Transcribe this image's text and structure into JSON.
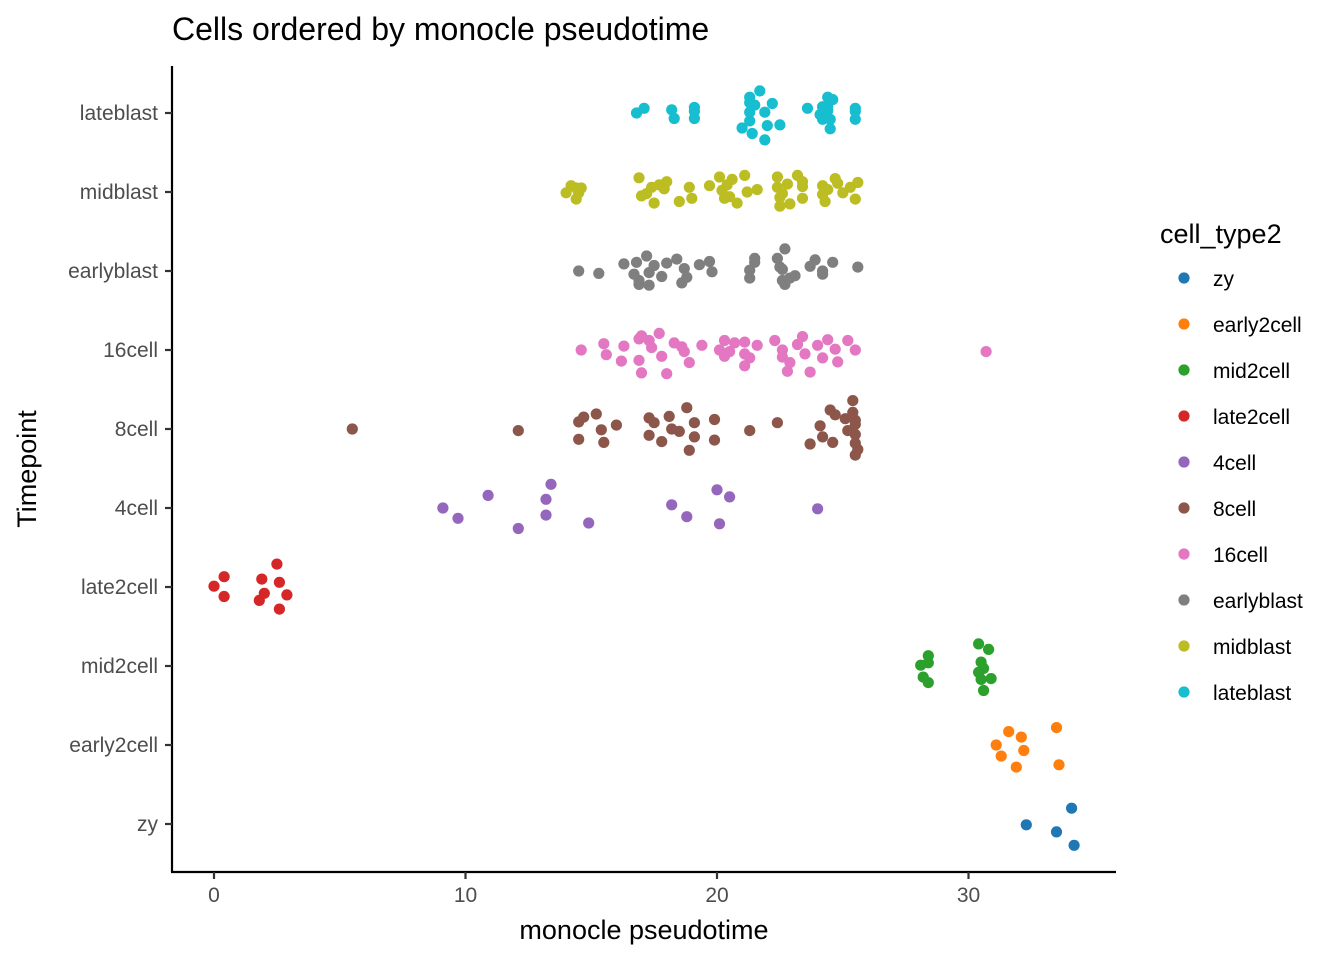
{
  "chart_data": {
    "type": "scatter",
    "title": "Cells ordered by monocle pseudotime",
    "xlabel": "monocle pseudotime",
    "ylabel": "Timepoint",
    "xlim": [
      -1.7,
      35.8
    ],
    "x_ticks": [
      0,
      10,
      20,
      30
    ],
    "categories": [
      "zy",
      "early2cell",
      "mid2cell",
      "late2cell",
      "4cell",
      "8cell",
      "16cell",
      "earlyblast",
      "midblast",
      "lateblast"
    ],
    "legend": {
      "title": "cell_type2",
      "position": "right"
    },
    "grid": false,
    "series": [
      {
        "name": "zy",
        "color": "#1f77b4",
        "points": [
          [
            32.3,
            -0.01
          ],
          [
            33.5,
            -0.1
          ],
          [
            34.1,
            0.2
          ],
          [
            34.2,
            -0.27
          ]
        ]
      },
      {
        "name": "early2cell",
        "color": "#ff7f0e",
        "points": [
          [
            31.1,
            1.0
          ],
          [
            31.3,
            0.86
          ],
          [
            31.6,
            1.17
          ],
          [
            31.9,
            0.72
          ],
          [
            32.1,
            1.1
          ],
          [
            32.2,
            0.93
          ],
          [
            33.5,
            1.22
          ],
          [
            33.6,
            0.75
          ]
        ]
      },
      {
        "name": "mid2cell",
        "color": "#2ca02c",
        "points": [
          [
            28.1,
            2.01
          ],
          [
            28.2,
            1.86
          ],
          [
            28.4,
            2.13
          ],
          [
            28.4,
            2.04
          ],
          [
            28.4,
            1.79
          ],
          [
            30.4,
            2.28
          ],
          [
            30.4,
            1.92
          ],
          [
            30.5,
            2.05
          ],
          [
            30.5,
            1.83
          ],
          [
            30.6,
            1.97
          ],
          [
            30.6,
            1.69
          ],
          [
            30.8,
            2.21
          ],
          [
            30.9,
            1.84
          ]
        ]
      },
      {
        "name": "late2cell",
        "color": "#d62728",
        "points": [
          [
            0.0,
            3.01
          ],
          [
            0.4,
            3.13
          ],
          [
            0.4,
            2.88
          ],
          [
            1.8,
            2.83
          ],
          [
            1.9,
            3.1
          ],
          [
            2.0,
            2.92
          ],
          [
            2.5,
            3.29
          ],
          [
            2.6,
            3.06
          ],
          [
            2.6,
            2.72
          ],
          [
            2.9,
            2.9
          ]
        ]
      },
      {
        "name": "4cell",
        "color": "#9467bd",
        "points": [
          [
            9.1,
            4.0
          ],
          [
            9.7,
            3.87
          ],
          [
            10.9,
            4.16
          ],
          [
            12.1,
            3.74
          ],
          [
            13.2,
            4.11
          ],
          [
            13.2,
            3.91
          ],
          [
            13.4,
            4.3
          ],
          [
            14.9,
            3.81
          ],
          [
            18.2,
            4.04
          ],
          [
            18.8,
            3.89
          ],
          [
            20.0,
            4.23
          ],
          [
            20.1,
            3.8
          ],
          [
            20.5,
            4.14
          ],
          [
            24.0,
            3.99
          ]
        ]
      },
      {
        "name": "8cell",
        "color": "#8c564b",
        "points": [
          [
            5.5,
            5.0
          ],
          [
            12.1,
            4.98
          ],
          [
            14.5,
            5.09
          ],
          [
            14.5,
            4.87
          ],
          [
            14.7,
            5.15
          ],
          [
            15.2,
            5.19
          ],
          [
            15.4,
            4.99
          ],
          [
            15.5,
            4.83
          ],
          [
            16.0,
            5.05
          ],
          [
            17.3,
            5.14
          ],
          [
            17.3,
            4.92
          ],
          [
            17.5,
            5.08
          ],
          [
            17.8,
            4.84
          ],
          [
            18.1,
            5.16
          ],
          [
            18.2,
            5.0
          ],
          [
            18.5,
            4.97
          ],
          [
            18.8,
            5.27
          ],
          [
            18.9,
            4.73
          ],
          [
            19.1,
            5.08
          ],
          [
            19.1,
            4.9
          ],
          [
            19.9,
            5.12
          ],
          [
            19.9,
            4.86
          ],
          [
            21.3,
            4.98
          ],
          [
            22.4,
            5.08
          ],
          [
            23.7,
            4.81
          ],
          [
            24.1,
            5.04
          ],
          [
            24.2,
            4.9
          ],
          [
            24.5,
            5.24
          ],
          [
            24.6,
            4.83
          ],
          [
            24.7,
            5.18
          ],
          [
            25.1,
            5.13
          ],
          [
            25.2,
            4.98
          ],
          [
            25.4,
            5.36
          ],
          [
            25.4,
            5.21
          ],
          [
            25.5,
            5.06
          ],
          [
            25.5,
            4.93
          ],
          [
            25.5,
            4.82
          ],
          [
            25.6,
            4.74
          ],
          [
            25.5,
            4.67
          ],
          [
            25.5,
            5.11
          ]
        ]
      },
      {
        "name": "16cell",
        "color": "#e377c2",
        "points": [
          [
            14.6,
            6.0
          ],
          [
            15.5,
            6.08
          ],
          [
            15.6,
            5.94
          ],
          [
            16.2,
            5.86
          ],
          [
            16.3,
            6.05
          ],
          [
            16.9,
            6.14
          ],
          [
            16.9,
            5.87
          ],
          [
            17.0,
            5.71
          ],
          [
            17.3,
            6.12
          ],
          [
            17.4,
            6.03
          ],
          [
            17.7,
            6.21
          ],
          [
            17.8,
            5.92
          ],
          [
            18.0,
            5.7
          ],
          [
            18.3,
            6.09
          ],
          [
            18.7,
            5.98
          ],
          [
            18.9,
            5.84
          ],
          [
            19.4,
            6.06
          ],
          [
            20.1,
            6.0
          ],
          [
            20.3,
            5.92
          ],
          [
            20.3,
            6.12
          ],
          [
            20.5,
            5.98
          ],
          [
            20.7,
            6.09
          ],
          [
            21.1,
            6.1
          ],
          [
            21.1,
            5.95
          ],
          [
            21.1,
            5.8
          ],
          [
            21.3,
            5.9
          ],
          [
            21.6,
            6.06
          ],
          [
            22.3,
            6.12
          ],
          [
            22.6,
            5.91
          ],
          [
            22.6,
            6.0
          ],
          [
            22.8,
            5.73
          ],
          [
            22.9,
            5.84
          ],
          [
            23.2,
            6.07
          ],
          [
            23.4,
            6.17
          ],
          [
            23.5,
            5.95
          ],
          [
            23.7,
            5.72
          ],
          [
            24.0,
            6.06
          ],
          [
            24.2,
            5.9
          ],
          [
            24.4,
            6.13
          ],
          [
            24.7,
            6.01
          ],
          [
            24.8,
            5.85
          ],
          [
            25.2,
            6.12
          ],
          [
            25.5,
            6.0
          ],
          [
            30.7,
            5.98
          ],
          [
            17.0,
            6.18
          ],
          [
            18.6,
            6.04
          ]
        ]
      },
      {
        "name": "earlyblast",
        "color": "#7f7f7f",
        "points": [
          [
            14.5,
            7.0
          ],
          [
            15.3,
            6.97
          ],
          [
            16.3,
            7.09
          ],
          [
            16.7,
            6.96
          ],
          [
            16.8,
            7.11
          ],
          [
            16.9,
            6.83
          ],
          [
            17.2,
            7.19
          ],
          [
            17.3,
            6.98
          ],
          [
            17.3,
            6.82
          ],
          [
            17.5,
            7.07
          ],
          [
            17.8,
            6.93
          ],
          [
            18.0,
            7.1
          ],
          [
            18.4,
            7.15
          ],
          [
            18.6,
            6.85
          ],
          [
            18.7,
            7.03
          ],
          [
            18.8,
            6.92
          ],
          [
            19.3,
            7.08
          ],
          [
            19.7,
            7.12
          ],
          [
            19.8,
            6.99
          ],
          [
            21.3,
            7.01
          ],
          [
            21.3,
            6.91
          ],
          [
            21.5,
            7.11
          ],
          [
            21.5,
            7.16
          ],
          [
            22.4,
            7.16
          ],
          [
            22.5,
            7.05
          ],
          [
            22.6,
            6.88
          ],
          [
            22.6,
            7.02
          ],
          [
            22.7,
            6.83
          ],
          [
            22.7,
            7.28
          ],
          [
            22.9,
            6.91
          ],
          [
            23.1,
            6.94
          ],
          [
            23.7,
            7.06
          ],
          [
            23.9,
            7.14
          ],
          [
            24.2,
            7.0
          ],
          [
            24.2,
            6.96
          ],
          [
            24.6,
            7.11
          ],
          [
            25.6,
            7.05
          ],
          [
            16.9,
            6.88
          ]
        ]
      },
      {
        "name": "midblast",
        "color": "#bcbd22",
        "points": [
          [
            14.0,
            7.99
          ],
          [
            14.2,
            8.08
          ],
          [
            14.4,
            7.91
          ],
          [
            14.4,
            8.05
          ],
          [
            14.5,
            7.99
          ],
          [
            14.6,
            8.05
          ],
          [
            16.9,
            8.18
          ],
          [
            17.0,
            7.95
          ],
          [
            17.2,
            7.98
          ],
          [
            17.4,
            8.06
          ],
          [
            17.5,
            7.86
          ],
          [
            17.7,
            8.09
          ],
          [
            17.9,
            8.04
          ],
          [
            18.0,
            8.13
          ],
          [
            18.5,
            7.88
          ],
          [
            18.9,
            8.06
          ],
          [
            19.0,
            7.92
          ],
          [
            19.7,
            8.08
          ],
          [
            20.1,
            8.19
          ],
          [
            20.2,
            8.02
          ],
          [
            20.3,
            7.92
          ],
          [
            20.4,
            8.09
          ],
          [
            20.5,
            7.94
          ],
          [
            20.6,
            8.16
          ],
          [
            20.8,
            7.86
          ],
          [
            21.1,
            8.21
          ],
          [
            21.2,
            8.0
          ],
          [
            21.6,
            8.03
          ],
          [
            22.4,
            8.19
          ],
          [
            22.4,
            8.06
          ],
          [
            22.5,
            7.93
          ],
          [
            22.5,
            7.82
          ],
          [
            22.6,
            7.98
          ],
          [
            22.8,
            8.1
          ],
          [
            22.9,
            7.85
          ],
          [
            23.2,
            8.21
          ],
          [
            23.4,
            8.07
          ],
          [
            23.4,
            7.92
          ],
          [
            23.4,
            8.13
          ],
          [
            24.2,
            8.08
          ],
          [
            24.2,
            7.97
          ],
          [
            24.3,
            7.88
          ],
          [
            24.4,
            8.03
          ],
          [
            24.7,
            8.17
          ],
          [
            24.8,
            8.11
          ],
          [
            25.0,
            7.99
          ],
          [
            25.3,
            8.06
          ],
          [
            25.5,
            7.91
          ],
          [
            25.6,
            8.12
          ]
        ]
      },
      {
        "name": "lateblast",
        "color": "#17becf",
        "points": [
          [
            16.8,
            9.0
          ],
          [
            17.1,
            9.06
          ],
          [
            18.3,
            8.93
          ],
          [
            18.2,
            9.04
          ],
          [
            19.1,
            9.07
          ],
          [
            19.1,
            8.93
          ],
          [
            21.0,
            8.81
          ],
          [
            21.3,
            9.01
          ],
          [
            21.3,
            9.2
          ],
          [
            21.3,
            9.13
          ],
          [
            21.3,
            8.9
          ],
          [
            21.4,
            8.74
          ],
          [
            21.5,
            9.1
          ],
          [
            21.7,
            9.28
          ],
          [
            21.9,
            8.66
          ],
          [
            21.9,
            9.01
          ],
          [
            22.0,
            8.84
          ],
          [
            22.2,
            9.12
          ],
          [
            22.5,
            8.85
          ],
          [
            23.6,
            9.06
          ],
          [
            24.1,
            8.98
          ],
          [
            24.2,
            8.92
          ],
          [
            24.4,
            9.2
          ],
          [
            24.4,
            9.03
          ],
          [
            24.4,
            9.08
          ],
          [
            24.5,
            8.8
          ],
          [
            24.5,
            8.92
          ],
          [
            25.5,
            9.06
          ],
          [
            25.5,
            8.92
          ],
          [
            19.1,
            9.02
          ],
          [
            25.5,
            9.02
          ],
          [
            24.6,
            9.17
          ],
          [
            24.2,
            9.08
          ]
        ]
      }
    ]
  }
}
